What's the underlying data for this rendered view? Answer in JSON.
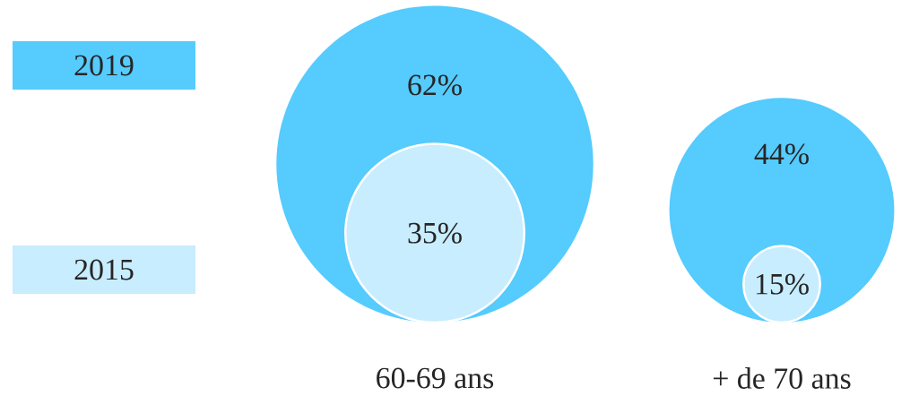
{
  "chart_data": {
    "type": "other",
    "categories": [
      "60-69 ans",
      "+ de 70 ans"
    ],
    "series": [
      {
        "name": "2019",
        "color": "#55cbfe",
        "values": [
          62,
          44
        ],
        "value_labels": [
          "62%",
          "44%"
        ]
      },
      {
        "name": "2015",
        "color": "#c8edfe",
        "values": [
          35,
          15
        ],
        "value_labels": [
          "35%",
          "15%"
        ]
      }
    ],
    "legend": "left"
  }
}
